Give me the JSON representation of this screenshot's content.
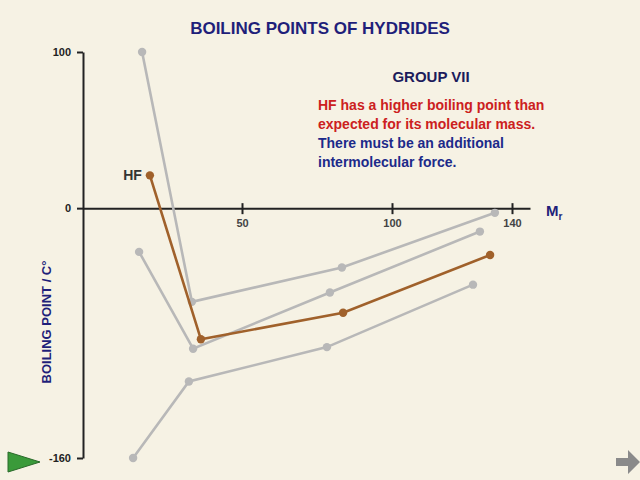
{
  "chart_data": {
    "type": "line",
    "title": "BOILING POINTS OF HYDRIDES",
    "x_label": "Mr",
    "y_label": "BOILING POINT / C°",
    "xlim": [
      -3,
      146
    ],
    "xticks": [
      50,
      100,
      140
    ],
    "ylim": [
      -160,
      100
    ],
    "yticks": [
      -160,
      0,
      100
    ],
    "grid": false,
    "marker": "circle",
    "series": [
      {
        "color": "#b8b8b8",
        "x": [
          13.7,
          32.3,
          78.3,
          127
        ],
        "values": [
          -160,
          -111,
          -89,
          -49
        ]
      },
      {
        "color": "#b8b8b8",
        "x": [
          15.7,
          33.7,
          79.3,
          129.3
        ],
        "values": [
          -28,
          -90,
          -54,
          -15
        ]
      },
      {
        "color": "#b8b8b8",
        "x": [
          16.7,
          33.3,
          83.3,
          134.3
        ],
        "values": [
          100,
          -60,
          -38,
          -3
        ]
      },
      {
        "color": "#a0612b",
        "x": [
          19.3,
          36.3,
          83.7,
          132.7
        ],
        "values": [
          21,
          -84,
          -67,
          -30
        ]
      }
    ],
    "annotations": [
      {
        "text": "HF"
      },
      {
        "text": "GROUP VII",
        "color": "#1c1c5c"
      },
      {
        "text": "HF has a higher boiling point than expected for its molecular mass.",
        "color": "#cc2020"
      },
      {
        "text": "There must be an additional intermolecular force.",
        "color": "#1c2a8a"
      }
    ]
  }
}
